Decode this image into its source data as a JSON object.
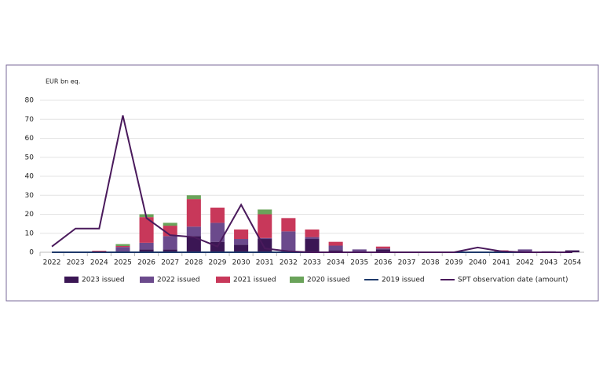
{
  "chart_data": {
    "type": "bar",
    "stacked": true,
    "y_label": "EUR bn eq.",
    "categories": [
      "2022",
      "2023",
      "2024",
      "2025",
      "2026",
      "2027",
      "2028",
      "2029",
      "2030",
      "2031",
      "2032",
      "2033",
      "2034",
      "2035",
      "2036",
      "2037",
      "2038",
      "2039",
      "2040",
      "2041",
      "2042",
      "2043",
      "2054"
    ],
    "series": [
      {
        "name": "2023 issued",
        "color": "#3b1654",
        "values": [
          0,
          0,
          0,
          0.3,
          1.5,
          1.5,
          8.5,
          5.5,
          4,
          7,
          0.5,
          7,
          1,
          0,
          1.5,
          0,
          0,
          0,
          0,
          0,
          0,
          0.5,
          1
        ]
      },
      {
        "name": "2022 issued",
        "color": "#6b4a8c",
        "values": [
          0,
          0,
          0,
          2.5,
          3.5,
          7,
          5,
          10,
          3,
          0.5,
          10.5,
          1,
          2.5,
          1.5,
          0.5,
          0,
          0,
          0,
          0,
          0,
          1.5,
          0,
          0
        ]
      },
      {
        "name": "2021 issued",
        "color": "#c8385a",
        "values": [
          0,
          0,
          0.8,
          0.5,
          13.5,
          5.5,
          14.5,
          8,
          5,
          12.5,
          7,
          4,
          2,
          0,
          1,
          0,
          0,
          0,
          0,
          1,
          0,
          0,
          0
        ]
      },
      {
        "name": "2020 issued",
        "color": "#6aa35a",
        "values": [
          0,
          0,
          0,
          1,
          1.5,
          1.5,
          2,
          0,
          0,
          2.5,
          0,
          0,
          0,
          0,
          0,
          0,
          0,
          0,
          0,
          0,
          0,
          0,
          0
        ]
      },
      {
        "name": "2019 issued",
        "color": "#1f3a6b",
        "type": "line",
        "values": [
          0,
          0,
          0,
          0,
          0,
          0,
          0,
          0,
          0,
          0,
          0,
          0,
          0,
          0,
          0,
          0,
          0,
          0,
          0,
          0,
          0,
          0,
          0
        ]
      },
      {
        "name": "SPT observation date (amount)",
        "color": "#4a1a5c",
        "type": "line",
        "values": [
          3,
          12.5,
          12.5,
          72,
          18,
          9,
          8,
          3,
          25,
          2,
          0.5,
          0,
          0,
          0,
          0,
          0,
          0,
          0,
          2.5,
          0.5,
          0,
          0,
          0
        ]
      }
    ],
    "ylim": [
      0,
      80
    ],
    "yticks": [
      0,
      10,
      20,
      30,
      40,
      50,
      60,
      70,
      80
    ],
    "grid": true
  }
}
